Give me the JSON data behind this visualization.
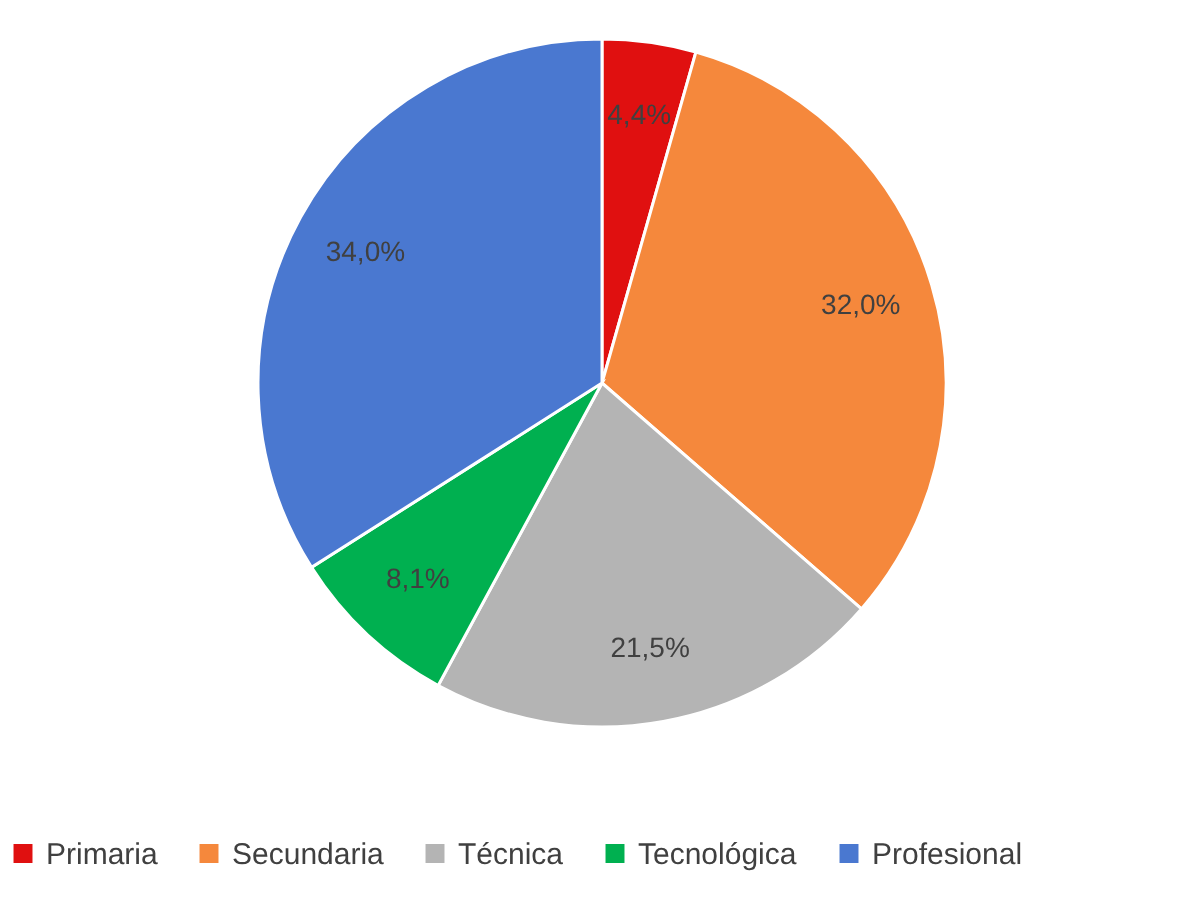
{
  "chart_data": {
    "type": "pie",
    "categories": [
      "Primaria",
      "Secundaria",
      "Técnica",
      "Tecnológica",
      "Profesional"
    ],
    "values": [
      4.4,
      32.0,
      21.5,
      8.1,
      34.0
    ],
    "value_labels": [
      "4,4%",
      "32,0%",
      "21,5%",
      "8,1%",
      "34,0%"
    ],
    "colors": [
      "#e01010",
      "#f5883c",
      "#b4b4b4",
      "#00b050",
      "#4a78d0"
    ],
    "legend": "bottom"
  }
}
